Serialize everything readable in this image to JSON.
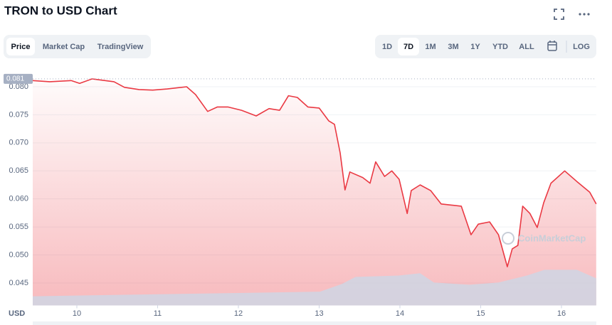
{
  "chart_data": {
    "type": "line",
    "title": "TRON to USD Chart",
    "tabs": [
      "Price",
      "Market Cap",
      "TradingView"
    ],
    "active_tab": "Price",
    "ranges": [
      "1D",
      "7D",
      "1M",
      "3M",
      "1Y",
      "YTD",
      "ALL"
    ],
    "active_range": "7D",
    "log_label": "LOG",
    "y_unit_label": "USD",
    "watermark": "CoinMarketCap",
    "max_price_marker": {
      "value": 0.0814,
      "label": "0.081"
    },
    "xlim": [
      9.454,
      16.43
    ],
    "xticks": [
      10,
      11,
      12,
      13,
      14,
      15,
      16
    ],
    "ylim": [
      0.041,
      0.082
    ],
    "yticks": [
      0.045,
      {
        "value": 0.05,
        "label": "0.050"
      },
      0.055,
      {
        "value": 0.06,
        "label": "0.060"
      },
      0.065,
      {
        "value": 0.07,
        "label": "0.070"
      },
      0.075,
      {
        "value": 0.08,
        "label": "0.080"
      }
    ],
    "y2lim": [
      0,
      1
    ],
    "grid": true,
    "series": [
      {
        "name": "Price",
        "color": "#ea3943",
        "x": [
          9.454,
          9.665,
          9.93,
          10.035,
          10.19,
          10.46,
          10.59,
          10.77,
          10.94,
          11.12,
          11.36,
          11.47,
          11.62,
          11.74,
          11.87,
          12.04,
          12.22,
          12.38,
          12.51,
          12.62,
          12.73,
          12.86,
          13.0,
          13.12,
          13.19,
          13.26,
          13.32,
          13.38,
          13.54,
          13.63,
          13.7,
          13.81,
          13.9,
          13.99,
          14.09,
          14.14,
          14.25,
          14.38,
          14.51,
          14.64,
          14.76,
          14.88,
          14.97,
          15.11,
          15.22,
          15.33,
          15.39,
          15.46,
          15.52,
          15.61,
          15.7,
          15.78,
          15.87,
          16.04,
          16.19,
          16.35,
          16.43
        ],
        "values": [
          0.0811,
          0.0809,
          0.0811,
          0.0806,
          0.0814,
          0.0809,
          0.0799,
          0.0795,
          0.0794,
          0.0796,
          0.08,
          0.0786,
          0.0756,
          0.0764,
          0.0764,
          0.0758,
          0.0748,
          0.0761,
          0.0758,
          0.0784,
          0.0781,
          0.0764,
          0.0762,
          0.0739,
          0.0733,
          0.0682,
          0.0616,
          0.0648,
          0.0638,
          0.0628,
          0.0666,
          0.064,
          0.065,
          0.0635,
          0.0574,
          0.0615,
          0.0625,
          0.0615,
          0.0591,
          0.0589,
          0.0587,
          0.0536,
          0.0555,
          0.0559,
          0.0536,
          0.0479,
          0.0511,
          0.0517,
          0.0587,
          0.0574,
          0.0549,
          0.0593,
          0.0628,
          0.065,
          0.0631,
          0.0612,
          0.0591
        ]
      },
      {
        "name": "Volume",
        "color": "#cfd6e4",
        "axis": "y2",
        "x": [
          9.454,
          13.01,
          13.28,
          13.45,
          13.98,
          14.25,
          14.42,
          14.86,
          15.22,
          15.57,
          15.79,
          16.19,
          16.43
        ],
        "values": [
          0.04,
          0.06,
          0.093,
          0.124,
          0.13,
          0.14,
          0.1,
          0.09,
          0.1,
          0.13,
          0.155,
          0.155,
          0.118
        ]
      }
    ]
  }
}
